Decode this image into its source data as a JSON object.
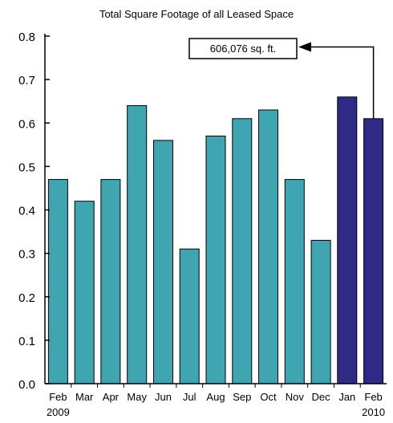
{
  "chart_data": {
    "type": "bar",
    "title": "Total Square Footage of all Leased Space",
    "xlabel": "",
    "ylabel": "",
    "ylim": [
      0,
      0.8
    ],
    "yticks": [
      "0.0",
      "0.1",
      "0.2",
      "0.3",
      "0.4",
      "0.5",
      "0.6",
      "0.7",
      "0.8"
    ],
    "categories": [
      "Feb",
      "Mar",
      "Apr",
      "May",
      "Jun",
      "Jul",
      "Aug",
      "Sep",
      "Oct",
      "Nov",
      "Dec",
      "Jan",
      "Feb"
    ],
    "year_labels": [
      {
        "category_index": 0,
        "text": "2009"
      },
      {
        "category_index": 12,
        "text": "2010"
      }
    ],
    "values": [
      0.47,
      0.42,
      0.47,
      0.64,
      0.56,
      0.31,
      0.57,
      0.61,
      0.63,
      0.47,
      0.33,
      0.66,
      0.61
    ],
    "bar_colors": [
      "#3fa6b1",
      "#3fa6b1",
      "#3fa6b1",
      "#3fa6b1",
      "#3fa6b1",
      "#3fa6b1",
      "#3fa6b1",
      "#3fa6b1",
      "#3fa6b1",
      "#3fa6b1",
      "#3fa6b1",
      "#2e2a86",
      "#2e2a86"
    ],
    "annotation": {
      "text": "606,076 sq. ft.",
      "target_category_index": 12
    },
    "grid": false,
    "legend": "none"
  },
  "colors": {
    "teal": "#3fa6b1",
    "navy": "#2e2a86",
    "axis": "#000000"
  }
}
